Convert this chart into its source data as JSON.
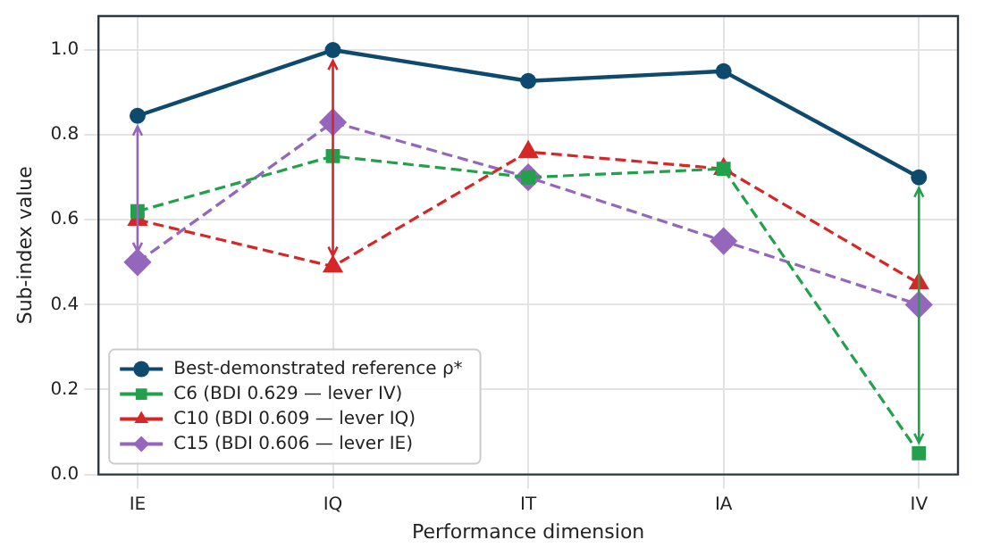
{
  "chart_data": {
    "type": "line",
    "xlabel": "Performance dimension",
    "ylabel": "Sub-index value",
    "categories": [
      "IE",
      "IQ",
      "IT",
      "IA",
      "IV"
    ],
    "series": [
      {
        "name": "Best-demonstrated reference ρ*",
        "color": "#0d4a6e",
        "values": [
          0.845,
          1.0,
          0.927,
          0.95,
          0.7
        ],
        "marker": "circle",
        "line_style": "solid"
      },
      {
        "name": "C6 (BDI 0.629 — lever IV)",
        "color": "#22a04b",
        "values": [
          0.62,
          0.75,
          0.7,
          0.72,
          0.05
        ],
        "marker": "square",
        "line_style": "dashed"
      },
      {
        "name": "C10 (BDI 0.609 — lever IQ)",
        "color": "#d62728",
        "values": [
          0.6,
          0.49,
          0.76,
          0.72,
          0.45
        ],
        "marker": "triangle",
        "line_style": "dashed"
      },
      {
        "name": "C15 (BDI 0.606 — lever IE)",
        "color": "#9467bd",
        "values": [
          0.5,
          0.83,
          0.7,
          0.55,
          0.4
        ],
        "marker": "diamond",
        "line_style": "dashed"
      }
    ],
    "ylim": [
      0,
      1.08
    ],
    "yticks": [
      {
        "value": 0,
        "label": "0.0"
      },
      0.2,
      0.4,
      0.6,
      0.8,
      {
        "value": 1,
        "label": "1.0"
      }
    ],
    "grid": true,
    "legend": "bottom left"
  }
}
